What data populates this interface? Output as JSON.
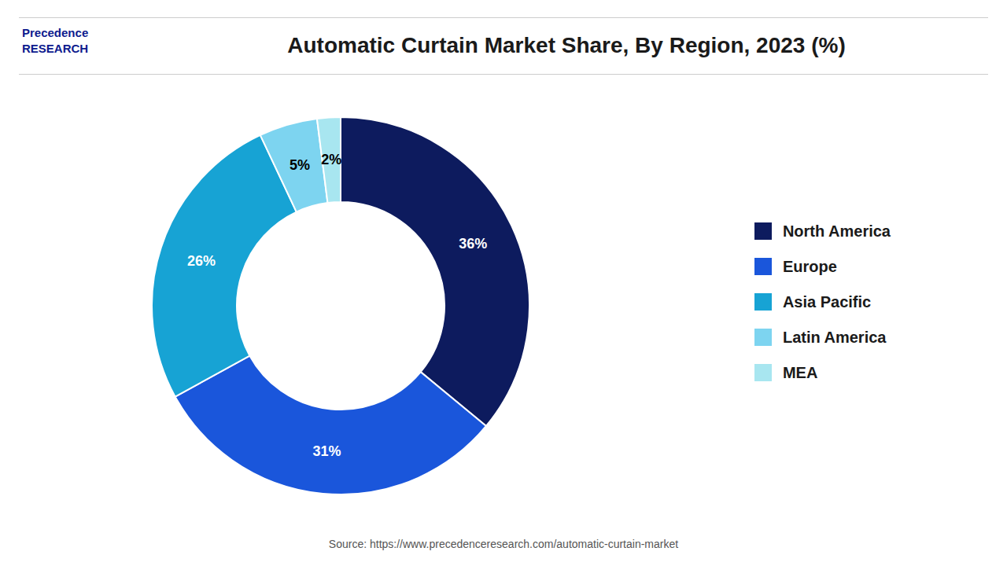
{
  "chart_data": {
    "type": "pie",
    "title": "Automatic Curtain Market Share, By Region, 2023 (%)",
    "categories": [
      "North America",
      "Europe",
      "Asia Pacific",
      "Latin America",
      "MEA"
    ],
    "values": [
      36,
      31,
      26,
      5,
      2
    ],
    "value_labels": [
      "36%",
      "31%",
      "26%",
      "5%",
      "2%"
    ],
    "data_labels": true,
    "colors": [
      "#0d1b5e",
      "#1a56db",
      "#17a3d4",
      "#7dd4f0",
      "#a8e6f0"
    ],
    "legend": "right",
    "annotations": [
      "Source: https://www.precedenceresearch.com/automatic-curtain-market",
      "Precedence\nRESEARCH"
    ]
  }
}
